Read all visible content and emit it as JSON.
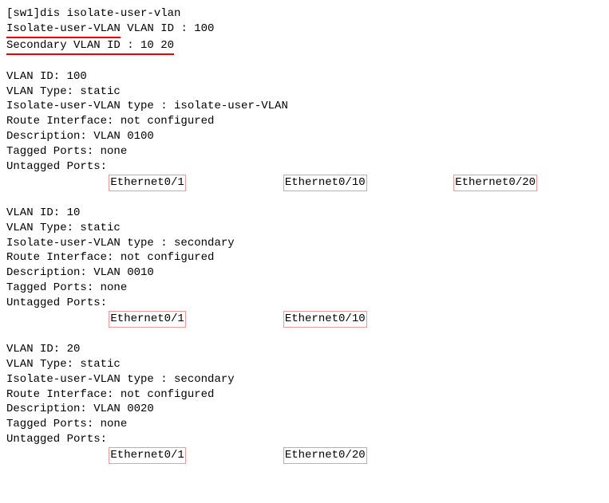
{
  "prompt": "[sw1]dis isolate-user-vlan",
  "header_line1_underlined": "Isolate-user-VLAN",
  "header_line1_rest": " VLAN ID : 100",
  "header_line2_underlined": "Secondary VLAN ID : 10 20",
  "vlan100": {
    "id_line": "VLAN ID: 100",
    "type_line": "VLAN Type: static",
    "iuv_line": "Isolate-user-VLAN type : isolate-user-VLAN",
    "route_line": "Route Interface: not configured",
    "desc_line": "Description: VLAN 0100",
    "tagged_line": "Tagged   Ports: none",
    "untagged_line": "Untagged Ports:",
    "ports": [
      "Ethernet0/1",
      "Ethernet0/10",
      "Ethernet0/20"
    ]
  },
  "vlan10": {
    "id_line": "VLAN ID: 10",
    "type_line": "VLAN Type: static",
    "iuv_line": "Isolate-user-VLAN type : secondary",
    "route_line": "Route Interface: not configured",
    "desc_line": "Description: VLAN 0010",
    "tagged_line": "Tagged   Ports: none",
    "untagged_line": "Untagged Ports:",
    "ports": [
      "Ethernet0/1",
      "Ethernet0/10"
    ]
  },
  "vlan20": {
    "id_line": "VLAN ID: 20",
    "type_line": "VLAN Type: static",
    "iuv_line": "Isolate-user-VLAN type : secondary",
    "route_line": "Route Interface: not configured",
    "desc_line": "Description: VLAN 0020",
    "tagged_line": "Tagged   Ports: none",
    "untagged_line": "Untagged Ports:",
    "ports": [
      "Ethernet0/1",
      "Ethernet0/20"
    ]
  }
}
